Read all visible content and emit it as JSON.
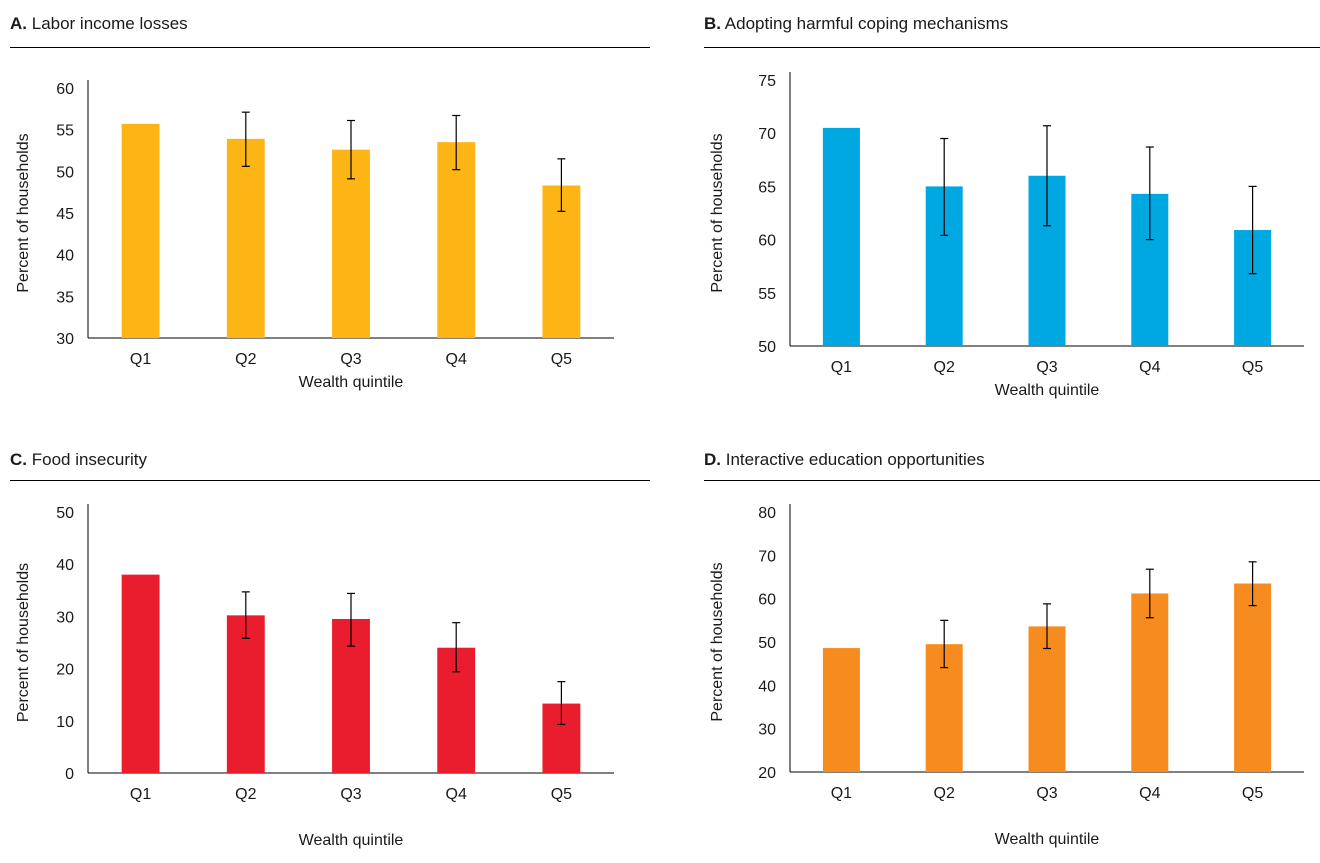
{
  "charts": {
    "A": {
      "chart_data": {
        "type": "bar",
        "title_letter": "A.",
        "title": "Labor income losses",
        "xlabel": "Wealth quintile",
        "ylabel": "Percent of households",
        "ylim": [
          30,
          60
        ],
        "yticks": [
          30,
          35,
          40,
          45,
          50,
          55,
          60
        ],
        "categories": [
          "Q1",
          "Q2",
          "Q3",
          "Q4",
          "Q5"
        ],
        "values": [
          55.7,
          53.9,
          52.6,
          53.5,
          48.3
        ],
        "error_low": [
          null,
          50.6,
          49.1,
          50.2,
          45.2
        ],
        "error_high": [
          null,
          57.1,
          56.1,
          56.7,
          51.5
        ],
        "color": "#FDB515",
        "grid": false
      }
    },
    "B": {
      "chart_data": {
        "type": "bar",
        "title_letter": "B.",
        "title": "Adopting harmful coping mechanisms",
        "xlabel": "Wealth quintile",
        "ylabel": "Percent of households",
        "ylim": [
          50,
          75
        ],
        "yticks": [
          50,
          55,
          60,
          65,
          70,
          75
        ],
        "categories": [
          "Q1",
          "Q2",
          "Q3",
          "Q4",
          "Q5"
        ],
        "values": [
          70.5,
          65.0,
          66.0,
          64.3,
          60.9
        ],
        "error_low": [
          null,
          60.4,
          61.3,
          60.0,
          56.8
        ],
        "error_high": [
          null,
          69.5,
          70.7,
          68.7,
          65.0
        ],
        "color": "#00A8E1",
        "grid": false
      }
    },
    "C": {
      "chart_data": {
        "type": "bar",
        "title_letter": "C.",
        "title": "Food insecurity",
        "xlabel": "Wealth quintile",
        "ylabel": "Percent of households",
        "ylim": [
          0,
          50
        ],
        "yticks": [
          0,
          10,
          20,
          30,
          40,
          50
        ],
        "categories": [
          "Q1",
          "Q2",
          "Q3",
          "Q4",
          "Q5"
        ],
        "values": [
          38.0,
          30.2,
          29.5,
          24.0,
          13.3
        ],
        "error_low": [
          null,
          25.8,
          24.3,
          19.4,
          9.3
        ],
        "error_high": [
          null,
          34.7,
          34.4,
          28.8,
          17.5
        ],
        "color": "#E91D2D",
        "grid": false
      }
    },
    "D": {
      "chart_data": {
        "type": "bar",
        "title_letter": "D.",
        "title": "Interactive education opportunities",
        "xlabel": "Wealth quintile",
        "ylabel": "Percent of households",
        "ylim": [
          20,
          80
        ],
        "yticks": [
          20,
          30,
          40,
          50,
          60,
          70,
          80
        ],
        "categories": [
          "Q1",
          "Q2",
          "Q3",
          "Q4",
          "Q5"
        ],
        "values": [
          48.6,
          49.5,
          53.6,
          61.2,
          63.5
        ],
        "error_low": [
          null,
          44.1,
          48.5,
          55.6,
          58.4
        ],
        "error_high": [
          null,
          55.0,
          58.8,
          66.8,
          68.5
        ],
        "color": "#F68C1F",
        "grid": false
      }
    }
  }
}
